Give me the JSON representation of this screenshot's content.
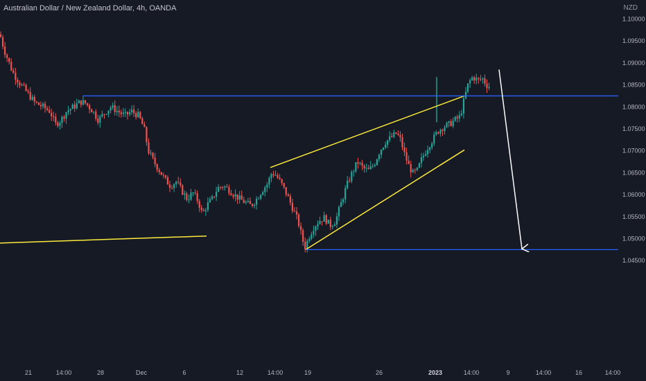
{
  "title": "Australian Dollar / New Zealand Dollar, 4h, OANDA",
  "currency": "NZD",
  "colors": {
    "background": "#161a25",
    "up": "#26a69a",
    "down": "#ef5350",
    "trendline": "#ffeb3b",
    "horizontal": "#2962ff",
    "arrow": "#ffffff",
    "axis_text": "#b2b5be"
  },
  "chart_data": {
    "type": "candlestick",
    "symbol": "AUDNZD",
    "timeframe": "4h",
    "y_ticks": [
      "1.10000",
      "1.09500",
      "1.09000",
      "1.08500",
      "1.08000",
      "1.07500",
      "1.07000",
      "1.06500",
      "1.06000",
      "1.05500",
      "1.05000",
      "1.04500"
    ],
    "ylim": [
      1.0425,
      1.1025
    ],
    "x_ticks": [
      {
        "label": "21",
        "bold": false
      },
      {
        "label": "14:00",
        "bold": false
      },
      {
        "label": "28",
        "bold": false
      },
      {
        "label": "Dec",
        "bold": false
      },
      {
        "label": "6",
        "bold": false
      },
      {
        "label": "12",
        "bold": false
      },
      {
        "label": "14:00",
        "bold": false
      },
      {
        "label": "19",
        "bold": false
      },
      {
        "label": "26",
        "bold": false
      },
      {
        "label": "2023",
        "bold": true
      },
      {
        "label": "14:00",
        "bold": false
      },
      {
        "label": "9",
        "bold": false
      },
      {
        "label": "14:00",
        "bold": false
      },
      {
        "label": "16",
        "bold": false
      },
      {
        "label": "14:00",
        "bold": false
      }
    ],
    "price_path": [
      [
        0,
        1.0965
      ],
      [
        6,
        1.093
      ],
      [
        18,
        1.088
      ],
      [
        28,
        1.0855
      ],
      [
        38,
        1.0835
      ],
      [
        50,
        1.081
      ],
      [
        62,
        1.08
      ],
      [
        72,
        1.079
      ],
      [
        80,
        1.076
      ],
      [
        88,
        1.077
      ],
      [
        96,
        1.079
      ],
      [
        106,
        1.08
      ],
      [
        116,
        1.0812
      ],
      [
        124,
        1.0808
      ],
      [
        134,
        1.079
      ],
      [
        142,
        1.077
      ],
      [
        150,
        1.0785
      ],
      [
        160,
        1.08
      ],
      [
        170,
        1.079
      ],
      [
        180,
        1.078
      ],
      [
        190,
        1.079
      ],
      [
        200,
        1.078
      ],
      [
        208,
        1.075
      ],
      [
        214,
        1.07
      ],
      [
        222,
        1.0675
      ],
      [
        230,
        1.0655
      ],
      [
        238,
        1.0635
      ],
      [
        246,
        1.062
      ],
      [
        254,
        1.063
      ],
      [
        262,
        1.061
      ],
      [
        270,
        1.059
      ],
      [
        278,
        1.0605
      ],
      [
        286,
        1.0585
      ],
      [
        292,
        1.0555
      ],
      [
        298,
        1.0575
      ],
      [
        306,
        1.059
      ],
      [
        314,
        1.0615
      ],
      [
        322,
        1.062
      ],
      [
        330,
        1.0612
      ],
      [
        338,
        1.06
      ],
      [
        346,
        1.059
      ],
      [
        354,
        1.0582
      ],
      [
        362,
        1.0575
      ],
      [
        370,
        1.059
      ],
      [
        378,
        1.061
      ],
      [
        386,
        1.0625
      ],
      [
        392,
        1.065
      ],
      [
        398,
        1.0645
      ],
      [
        406,
        1.0625
      ],
      [
        414,
        1.06
      ],
      [
        422,
        1.057
      ],
      [
        430,
        1.054
      ],
      [
        436,
        1.05
      ],
      [
        440,
        1.048
      ],
      [
        446,
        1.0505
      ],
      [
        452,
        1.0525
      ],
      [
        460,
        1.054
      ],
      [
        468,
        1.0548
      ],
      [
        476,
        1.053
      ],
      [
        484,
        1.054
      ],
      [
        492,
        1.058
      ],
      [
        500,
        1.062
      ],
      [
        508,
        1.065
      ],
      [
        516,
        1.0675
      ],
      [
        524,
        1.066
      ],
      [
        532,
        1.0655
      ],
      [
        540,
        1.067
      ],
      [
        548,
        1.07
      ],
      [
        556,
        1.072
      ],
      [
        564,
        1.073
      ],
      [
        572,
        1.074
      ],
      [
        578,
        1.0725
      ],
      [
        584,
        1.069
      ],
      [
        590,
        1.0665
      ],
      [
        596,
        1.0648
      ],
      [
        602,
        1.0655
      ],
      [
        608,
        1.068
      ],
      [
        616,
        1.0705
      ],
      [
        624,
        1.0725
      ],
      [
        632,
        1.0745
      ],
      [
        640,
        1.0755
      ],
      [
        648,
        1.076
      ],
      [
        656,
        1.077
      ],
      [
        664,
        1.0778
      ],
      [
        670,
        1.082
      ],
      [
        676,
        1.0855
      ],
      [
        682,
        1.0868
      ],
      [
        690,
        1.086
      ],
      [
        696,
        1.0865
      ],
      [
        702,
        1.085
      ],
      [
        708,
        1.0845
      ]
    ],
    "spike": {
      "x_index": 630,
      "high": 1.0868,
      "low": 1.0765
    },
    "drawings": [
      {
        "kind": "trendline",
        "color": "trendline",
        "from": [
          0,
          1.049
        ],
        "to": [
          298,
          1.0506
        ]
      },
      {
        "kind": "trendline",
        "color": "trendline",
        "from": [
          390,
          1.0662
        ],
        "to": [
          670,
          1.0825
        ]
      },
      {
        "kind": "trendline",
        "color": "trendline",
        "from": [
          441,
          1.0475
        ],
        "to": [
          670,
          1.0702
        ]
      },
      {
        "kind": "horizontal",
        "color": "horizontal",
        "from": [
          120,
          1.0825
        ],
        "to": [
          892,
          1.0825
        ]
      },
      {
        "kind": "horizontal",
        "color": "horizontal",
        "from": [
          441,
          1.0475
        ],
        "to": [
          892,
          1.0475
        ]
      },
      {
        "kind": "arrow",
        "color": "arrow",
        "from": [
          720,
          1.0885
        ],
        "to": [
          753,
          1.0475
        ]
      }
    ]
  }
}
